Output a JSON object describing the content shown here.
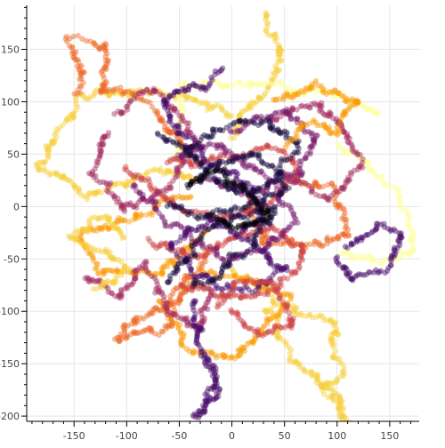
{
  "chart_data": {
    "type": "scatter",
    "title": "",
    "xlabel": "",
    "ylabel": "",
    "xlim": [
      -195,
      178
    ],
    "ylim": [
      -205,
      192
    ],
    "x_ticks": [
      -150,
      -100,
      -50,
      0,
      50,
      100,
      150
    ],
    "y_ticks": [
      150,
      100,
      50,
      0,
      -50,
      -100,
      -150,
      -200
    ],
    "x_tick_labels": [
      "-150",
      "-100",
      "-50",
      "0",
      "50",
      "100",
      "150"
    ],
    "y_tick_labels": [
      "150",
      "100",
      "50",
      "0",
      "-50",
      "-100",
      "-150",
      "-200"
    ],
    "grid": true,
    "legend": "none",
    "marker_opacity": 0.45,
    "palette": [
      "#000004",
      "#1b0c41",
      "#4a0c6b",
      "#781c6d",
      "#a52c60",
      "#cf4446",
      "#ed6925",
      "#fb9b06",
      "#f7d13d",
      "#fcffa4"
    ],
    "walks": [
      {
        "color_index": 8,
        "path": [
          [
            30,
            185
          ],
          [
            38,
            160
          ],
          [
            50,
            140
          ],
          [
            40,
            118
          ],
          [
            20,
            95
          ],
          [
            0,
            60
          ]
        ]
      },
      {
        "color_index": 8,
        "path": [
          [
            0,
            85
          ],
          [
            -40,
            110
          ],
          [
            -90,
            105
          ],
          [
            -140,
            110
          ],
          [
            -185,
            40
          ],
          [
            -140,
            10
          ],
          [
            -80,
            30
          ],
          [
            -20,
            20
          ]
        ]
      },
      {
        "color_index": 8,
        "path": [
          [
            0,
            -60
          ],
          [
            40,
            -90
          ],
          [
            70,
            -100
          ],
          [
            100,
            -120
          ],
          [
            105,
            -160
          ],
          [
            85,
            -170
          ],
          [
            110,
            -200
          ],
          [
            120,
            -210
          ],
          [
            65,
            -150
          ],
          [
            30,
            -95
          ]
        ]
      },
      {
        "color_index": 9,
        "path": [
          [
            100,
            60
          ],
          [
            150,
            20
          ],
          [
            170,
            -10
          ],
          [
            172,
            -40
          ],
          [
            140,
            -60
          ],
          [
            100,
            -40
          ]
        ]
      },
      {
        "color_index": 9,
        "path": [
          [
            -50,
            40
          ],
          [
            -50,
            110
          ],
          [
            -10,
            120
          ],
          [
            60,
            110
          ],
          [
            100,
            110
          ],
          [
            140,
            80
          ]
        ]
      },
      {
        "color_index": 7,
        "path": [
          [
            -20,
            -20
          ],
          [
            -70,
            -60
          ],
          [
            -130,
            -60
          ],
          [
            -140,
            -30
          ],
          [
            -90,
            -10
          ],
          [
            -40,
            10
          ]
        ]
      },
      {
        "color_index": 7,
        "path": [
          [
            -70,
            -90
          ],
          [
            -40,
            -130
          ],
          [
            0,
            -150
          ],
          [
            20,
            -130
          ],
          [
            50,
            -90
          ],
          [
            20,
            -70
          ],
          [
            -30,
            -60
          ]
        ]
      },
      {
        "color_index": 6,
        "path": [
          [
            -150,
            110
          ],
          [
            -140,
            130
          ],
          [
            -150,
            160
          ],
          [
            -120,
            155
          ],
          [
            -120,
            110
          ],
          [
            -90,
            100
          ],
          [
            -60,
            70
          ],
          [
            -30,
            40
          ]
        ]
      },
      {
        "color_index": 6,
        "path": [
          [
            -20,
            -40
          ],
          [
            -70,
            -120
          ],
          [
            -110,
            -130
          ],
          [
            -90,
            -110
          ],
          [
            -60,
            -90
          ],
          [
            -30,
            -60
          ]
        ]
      },
      {
        "color_index": 6,
        "path": [
          [
            60,
            30
          ],
          [
            100,
            20
          ],
          [
            110,
            -20
          ],
          [
            70,
            -40
          ],
          [
            30,
            -30
          ],
          [
            20,
            10
          ]
        ]
      },
      {
        "color_index": 5,
        "path": [
          [
            -100,
            40
          ],
          [
            -60,
            10
          ],
          [
            -20,
            -10
          ],
          [
            30,
            0
          ],
          [
            60,
            30
          ],
          [
            40,
            60
          ],
          [
            -10,
            50
          ],
          [
            -60,
            40
          ]
        ]
      },
      {
        "color_index": 5,
        "path": [
          [
            -80,
            -30
          ],
          [
            -40,
            -50
          ],
          [
            0,
            -30
          ],
          [
            40,
            -20
          ],
          [
            70,
            -50
          ],
          [
            40,
            -80
          ],
          [
            0,
            -90
          ],
          [
            -50,
            -80
          ]
        ]
      },
      {
        "color_index": 4,
        "path": [
          [
            -110,
            90
          ],
          [
            -70,
            110
          ],
          [
            -40,
            60
          ],
          [
            -60,
            20
          ],
          [
            -100,
            0
          ],
          [
            -130,
            30
          ],
          [
            -110,
            70
          ]
        ]
      },
      {
        "color_index": 4,
        "path": [
          [
            -140,
            -70
          ],
          [
            -110,
            -90
          ],
          [
            -80,
            -60
          ],
          [
            -60,
            -100
          ],
          [
            -30,
            -120
          ],
          [
            -20,
            -80
          ]
        ]
      },
      {
        "color_index": 4,
        "path": [
          [
            40,
            80
          ],
          [
            80,
            100
          ],
          [
            110,
            80
          ],
          [
            120,
            40
          ],
          [
            90,
            10
          ],
          [
            50,
            30
          ]
        ]
      },
      {
        "color_index": 3,
        "path": [
          [
            -90,
            20
          ],
          [
            -50,
            -20
          ],
          [
            -10,
            -50
          ],
          [
            30,
            -40
          ],
          [
            60,
            -10
          ],
          [
            30,
            30
          ],
          [
            -20,
            60
          ],
          [
            -60,
            50
          ]
        ]
      },
      {
        "color_index": 3,
        "path": [
          [
            0,
            70
          ],
          [
            50,
            90
          ],
          [
            80,
            70
          ],
          [
            60,
            30
          ],
          [
            20,
            10
          ],
          [
            -20,
            30
          ]
        ]
      },
      {
        "color_index": 2,
        "path": [
          [
            -10,
            130
          ],
          [
            -30,
            115
          ],
          [
            -70,
            100
          ],
          [
            -50,
            70
          ],
          [
            -20,
            40
          ],
          [
            20,
            20
          ],
          [
            30,
            -10
          ],
          [
            0,
            -30
          ]
        ]
      },
      {
        "color_index": 2,
        "path": [
          [
            -30,
            -140
          ],
          [
            -20,
            -170
          ],
          [
            -30,
            -200
          ],
          [
            -10,
            -180
          ],
          [
            -20,
            -150
          ],
          [
            -30,
            -120
          ],
          [
            -40,
            -90
          ]
        ]
      },
      {
        "color_index": 2,
        "path": [
          [
            110,
            -40
          ],
          [
            140,
            -20
          ],
          [
            160,
            -30
          ],
          [
            150,
            -60
          ],
          [
            120,
            -70
          ],
          [
            100,
            -50
          ]
        ]
      },
      {
        "color_index": 2,
        "path": [
          [
            -60,
            -40
          ],
          [
            -20,
            -10
          ],
          [
            20,
            -30
          ],
          [
            50,
            -60
          ],
          [
            20,
            -80
          ],
          [
            -20,
            -70
          ],
          [
            -50,
            -50
          ]
        ]
      },
      {
        "color_index": 1,
        "path": [
          [
            -70,
            70
          ],
          [
            -30,
            40
          ],
          [
            0,
            10
          ],
          [
            40,
            30
          ],
          [
            60,
            60
          ],
          [
            30,
            80
          ],
          [
            -10,
            70
          ],
          [
            -40,
            50
          ]
        ]
      },
      {
        "color_index": 1,
        "path": [
          [
            -60,
            -70
          ],
          [
            -30,
            -30
          ],
          [
            10,
            -10
          ],
          [
            40,
            0
          ],
          [
            20,
            -40
          ],
          [
            -10,
            -60
          ],
          [
            -40,
            -80
          ]
        ]
      },
      {
        "color_index": 1,
        "path": [
          [
            -60,
            0
          ],
          [
            -20,
            -10
          ],
          [
            10,
            0
          ],
          [
            50,
            20
          ],
          [
            30,
            50
          ],
          [
            -10,
            40
          ],
          [
            -40,
            20
          ]
        ]
      },
      {
        "color_index": 0,
        "path": [
          [
            -40,
            20
          ],
          [
            -10,
            30
          ],
          [
            20,
            10
          ],
          [
            40,
            -10
          ],
          [
            10,
            -20
          ],
          [
            -20,
            -10
          ]
        ]
      },
      {
        "color_index": 8,
        "path": [
          [
            -130,
            -80
          ],
          [
            -100,
            -60
          ],
          [
            -120,
            -40
          ],
          [
            -150,
            -30
          ],
          [
            -130,
            -10
          ],
          [
            -100,
            -30
          ]
        ]
      },
      {
        "color_index": 7,
        "path": [
          [
            40,
            100
          ],
          [
            80,
            120
          ],
          [
            120,
            100
          ],
          [
            100,
            70
          ],
          [
            70,
            80
          ],
          [
            50,
            60
          ]
        ]
      },
      {
        "color_index": 5,
        "path": [
          [
            0,
            -100
          ],
          [
            30,
            -120
          ],
          [
            60,
            -110
          ],
          [
            40,
            -80
          ],
          [
            10,
            -70
          ],
          [
            -20,
            -90
          ]
        ]
      }
    ]
  }
}
